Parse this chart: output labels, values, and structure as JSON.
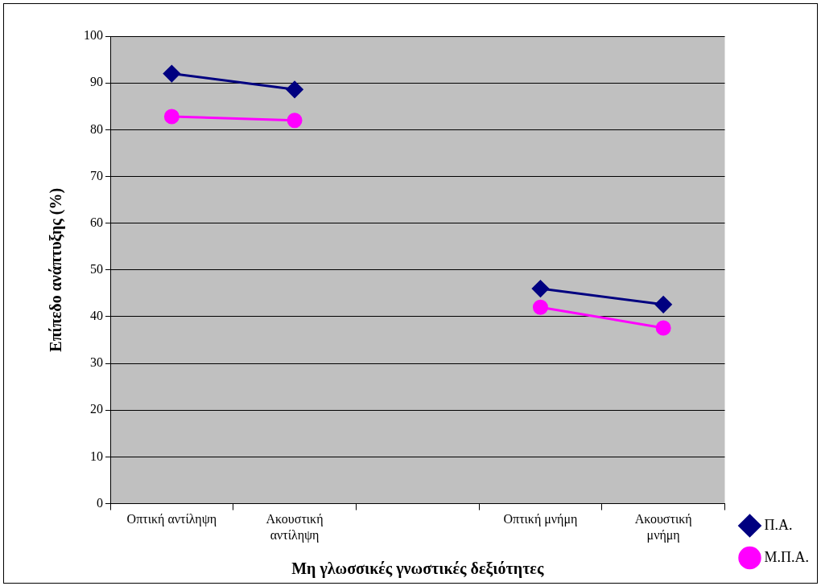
{
  "chart_data": {
    "type": "line",
    "xlabel": "Μη γλωσσικές γνωστικές δεξιότητες",
    "ylabel": "Επίπεδο ανάπτυξης (%)",
    "categories": [
      "Οπτική αντίληψη",
      "Ακουστική αντίληψη",
      null,
      "Οπτική μνήμη",
      "Ακουστική μνήμη"
    ],
    "series": [
      {
        "name": "Π.Α.",
        "color": "#000080",
        "marker": "diamond",
        "values": [
          92,
          88.6,
          null,
          46,
          42.6
        ]
      },
      {
        "name": "Μ.Π.Α.",
        "color": "#ff00ff",
        "marker": "circle",
        "values": [
          82.8,
          82,
          null,
          42,
          37.6
        ]
      }
    ],
    "ylim": [
      0,
      100
    ],
    "yticks": [
      0,
      10,
      20,
      30,
      40,
      50,
      60,
      70,
      80,
      90,
      100
    ],
    "grid": "y",
    "legend": "bottom right"
  }
}
